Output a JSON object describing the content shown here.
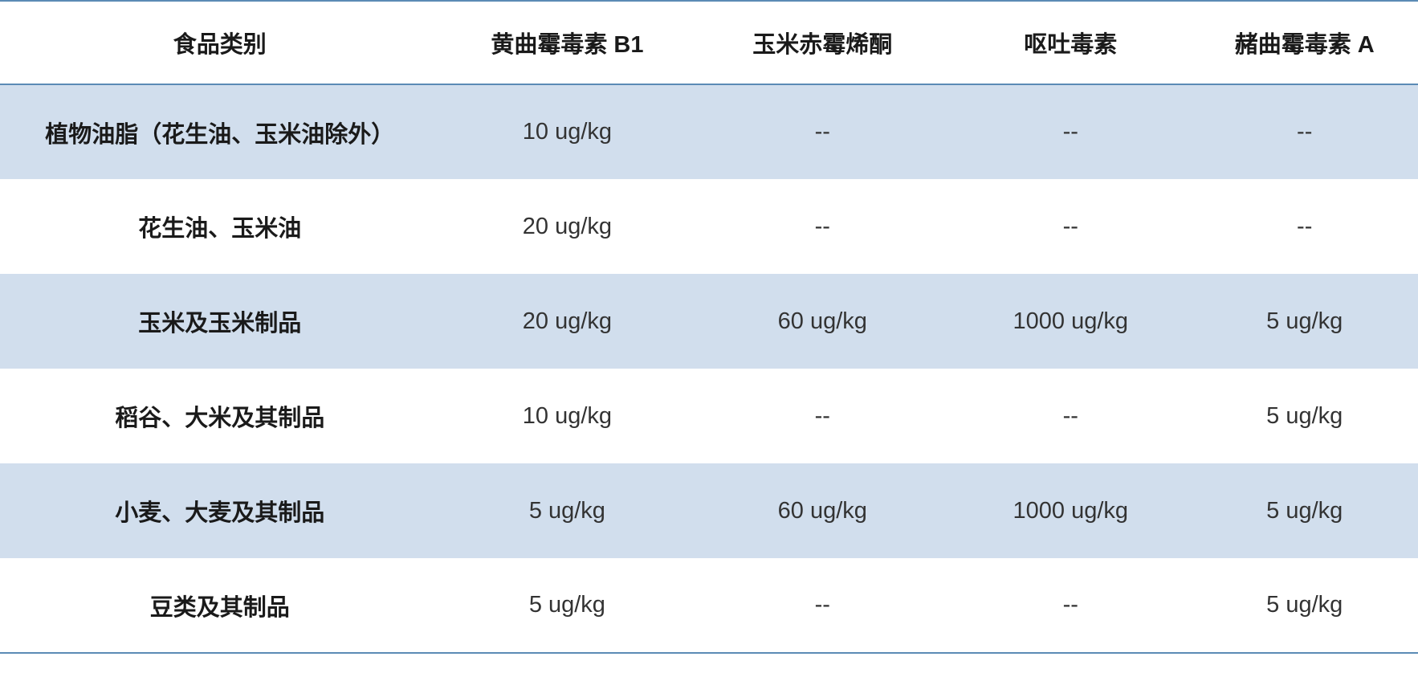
{
  "table": {
    "columns": [
      "食品类别",
      "黄曲霉毒素 B1",
      "玉米赤霉烯酮",
      "呕吐毒素",
      "赭曲霉毒素 A"
    ],
    "rows": [
      {
        "category": "植物油脂（花生油、玉米油除外）",
        "values": [
          "10 ug/kg",
          "--",
          "--",
          "--"
        ]
      },
      {
        "category": "花生油、玉米油",
        "values": [
          "20 ug/kg",
          "--",
          "--",
          "--"
        ]
      },
      {
        "category": "玉米及玉米制品",
        "values": [
          "20 ug/kg",
          "60 ug/kg",
          "1000 ug/kg",
          "5 ug/kg"
        ]
      },
      {
        "category": "稻谷、大米及其制品",
        "values": [
          "10 ug/kg",
          "--",
          "--",
          "5 ug/kg"
        ]
      },
      {
        "category": "小麦、大麦及其制品",
        "values": [
          "5 ug/kg",
          "60 ug/kg",
          "1000 ug/kg",
          "5 ug/kg"
        ]
      },
      {
        "category": "豆类及其制品",
        "values": [
          "5 ug/kg",
          "--",
          "--",
          "5 ug/kg"
        ]
      }
    ],
    "styling": {
      "border_color": "#5b8bb5",
      "odd_row_bg": "#d1deed",
      "even_row_bg": "#ffffff",
      "header_bg": "#ffffff",
      "text_color": "#333333",
      "header_text_color": "#1a1a1a",
      "font_size": 29,
      "header_font_weight": "bold",
      "category_font_weight": "bold",
      "column_widths": [
        "31%",
        "18%",
        "18%",
        "17%",
        "16%"
      ]
    }
  }
}
